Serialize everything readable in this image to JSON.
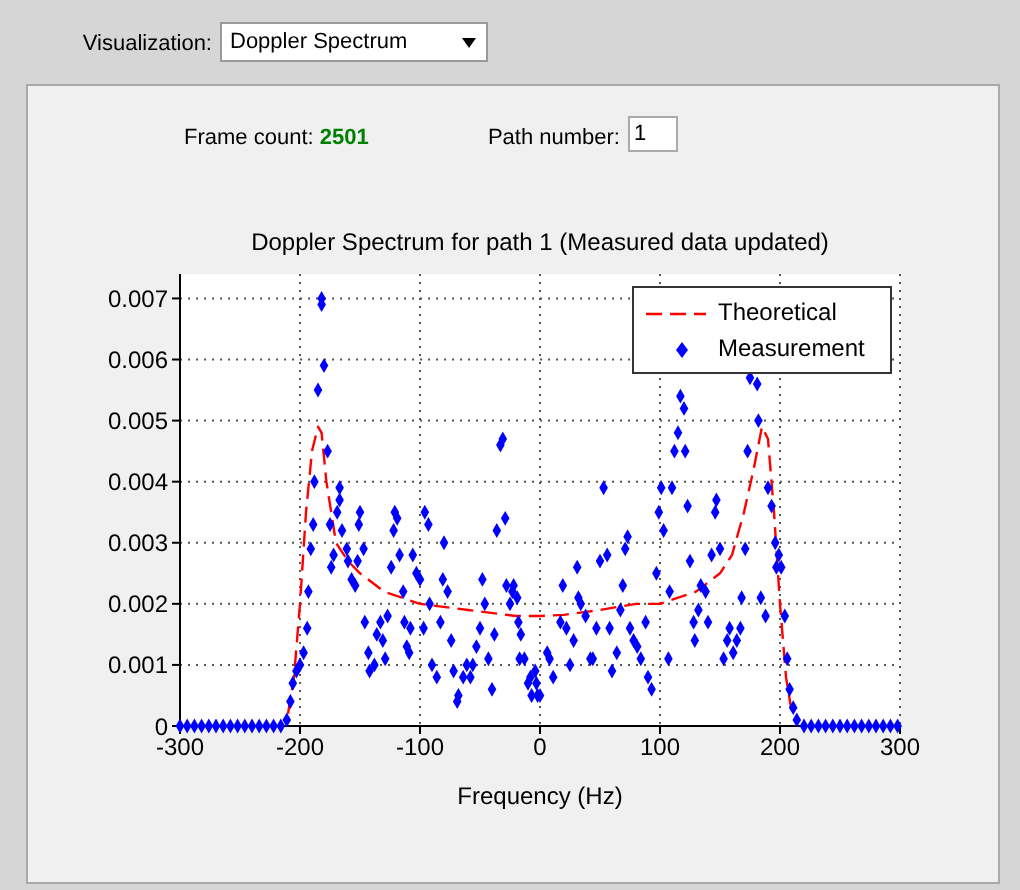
{
  "chart_data": {
    "type": "scatter",
    "title": "Doppler Spectrum for path 1 (Measured data updated)",
    "xlabel": "Frequency (Hz)",
    "annotations": [
      "Visualization:",
      "Doppler Spectrum",
      "Frame count:",
      "2501",
      "Path number:",
      "1"
    ],
    "xlim": [
      -300,
      300
    ],
    "xticks": [
      -300,
      -200,
      -100,
      0,
      100,
      200,
      300
    ],
    "ylim": [
      0,
      0.0074
    ],
    "yticks": [
      0,
      0.001,
      0.002,
      0.003,
      0.004,
      0.005,
      0.006,
      0.007
    ],
    "grid": true,
    "legend": "top right",
    "series": [
      {
        "name": "Theoretical",
        "type": "line",
        "color": "#ff0000",
        "line_style": "dashed",
        "marker": "none",
        "x": [
          -210,
          -205,
          -200,
          -195,
          -190,
          -185,
          -182,
          -178,
          -170,
          -160,
          -150,
          -130,
          -100,
          -60,
          -20,
          0,
          20,
          50,
          80,
          100,
          130,
          150,
          160,
          170,
          178,
          185,
          190,
          195,
          200,
          205,
          210
        ],
        "values": [
          0.0002,
          0.0008,
          0.002,
          0.0035,
          0.0045,
          0.0049,
          0.0048,
          0.004,
          0.003,
          0.0027,
          0.0025,
          0.0022,
          0.002,
          0.0019,
          0.0018,
          0.0018,
          0.00182,
          0.0019,
          0.002,
          0.002,
          0.0022,
          0.0025,
          0.0028,
          0.0035,
          0.0042,
          0.0049,
          0.0047,
          0.0035,
          0.002,
          0.0008,
          0.0002
        ]
      },
      {
        "name": "Measurement",
        "color": "#0000ff",
        "marker": "diamond",
        "x": [
          -300,
          -294,
          -288,
          -282,
          -276,
          -270,
          -264,
          -258,
          -252,
          -246,
          -240,
          -234,
          -228,
          -222,
          -216,
          -211,
          -208,
          -206,
          -203,
          -200,
          -197,
          -194,
          -193,
          -191,
          -189,
          -188,
          -185,
          -182,
          -182,
          -180,
          -177,
          -175,
          -174,
          -172,
          -169,
          -167,
          -167,
          -165,
          -161,
          -160,
          -157,
          -154,
          -152,
          -151,
          -150,
          -147,
          -146,
          -143,
          -142,
          -138,
          -136,
          -133,
          -131,
          -129,
          -127,
          -124,
          -122,
          -121,
          -119,
          -117,
          -114,
          -113,
          -111,
          -109,
          -108,
          -106,
          -103,
          -100,
          -97,
          -96,
          -93,
          -92,
          -90,
          -86,
          -83,
          -81,
          -80,
          -77,
          -74,
          -72,
          -69,
          -68,
          -64,
          -61,
          -58,
          -56,
          -53,
          -50,
          -48,
          -46,
          -43,
          -40,
          -38,
          -36,
          -33,
          -31,
          -29,
          -28,
          -25,
          -23,
          -22,
          -19,
          -18,
          -17,
          -16,
          -13,
          -10,
          -8,
          -7,
          -4,
          -3,
          -2,
          0,
          6,
          8,
          11,
          17,
          19,
          22,
          25,
          28,
          31,
          32,
          34,
          38,
          42,
          44,
          47,
          50,
          53,
          56,
          58,
          60,
          64,
          67,
          69,
          71,
          73,
          75,
          78,
          81,
          84,
          88,
          90,
          93,
          97,
          99,
          101,
          103,
          107,
          108,
          110,
          112,
          115,
          117,
          120,
          121,
          123,
          125,
          128,
          129,
          132,
          134,
          138,
          140,
          143,
          146,
          147,
          150,
          153,
          156,
          158,
          161,
          164,
          167,
          168,
          171,
          173,
          175,
          181,
          182,
          184,
          188,
          190,
          193,
          196,
          197,
          199,
          201,
          204,
          206,
          208,
          211,
          214,
          220,
          226,
          232,
          238,
          244,
          250,
          256,
          262,
          268,
          274,
          280,
          286,
          292,
          298
        ],
        "values": [
          0,
          0,
          0,
          0,
          0,
          0,
          0,
          0,
          0,
          0,
          0,
          0,
          0,
          0,
          0,
          0.0001,
          0.0004,
          0.0007,
          0.0009,
          0.001,
          0.0012,
          0.0016,
          0.0022,
          0.0029,
          0.0033,
          0.004,
          0.0055,
          0.007,
          0.0069,
          0.0059,
          0.0045,
          0.0033,
          0.0026,
          0.0028,
          0.0035,
          0.0039,
          0.0037,
          0.0032,
          0.0029,
          0.0027,
          0.0024,
          0.0023,
          0.0027,
          0.0033,
          0.0035,
          0.0029,
          0.0017,
          0.0012,
          0.0009,
          0.001,
          0.0015,
          0.0017,
          0.0014,
          0.0011,
          0.0018,
          0.0026,
          0.0032,
          0.0035,
          0.0034,
          0.0028,
          0.0022,
          0.0017,
          0.0013,
          0.0012,
          0.0016,
          0.0028,
          0.0025,
          0.0024,
          0.0016,
          0.0035,
          0.0033,
          0.002,
          0.001,
          0.0008,
          0.0017,
          0.0024,
          0.003,
          0.0022,
          0.0014,
          0.0009,
          0.0004,
          0.0005,
          0.0008,
          0.001,
          0.0008,
          0.001,
          0.0013,
          0.0016,
          0.0024,
          0.002,
          0.0011,
          0.0006,
          0.0015,
          0.0032,
          0.0046,
          0.0047,
          0.0034,
          0.0023,
          0.002,
          0.0022,
          0.0023,
          0.0021,
          0.0017,
          0.0011,
          0.0015,
          0.0011,
          0.0007,
          0.0008,
          0.0005,
          0.0009,
          0.0007,
          0.0005,
          0.0005,
          0.0012,
          0.0011,
          0.0008,
          0.0017,
          0.0023,
          0.0016,
          0.001,
          0.0014,
          0.0026,
          0.0021,
          0.002,
          0.0018,
          0.0011,
          0.0011,
          0.0016,
          0.0027,
          0.0039,
          0.0028,
          0.0016,
          0.0009,
          0.0012,
          0.0019,
          0.0023,
          0.0029,
          0.0031,
          0.0016,
          0.0014,
          0.0013,
          0.0011,
          0.0017,
          0.0008,
          0.0006,
          0.0025,
          0.0035,
          0.0039,
          0.0032,
          0.0011,
          0.0022,
          0.0039,
          0.0045,
          0.0048,
          0.0054,
          0.0052,
          0.0045,
          0.0036,
          0.0027,
          0.0017,
          0.0014,
          0.0019,
          0.0023,
          0.0022,
          0.0017,
          0.0028,
          0.0035,
          0.0037,
          0.0029,
          0.0011,
          0.0014,
          0.0016,
          0.0012,
          0.0014,
          0.0016,
          0.0021,
          0.0029,
          0.0045,
          0.0057,
          0.0056,
          0.005,
          0.0021,
          0.0018,
          0.0039,
          0.0036,
          0.003,
          0.0026,
          0.0028,
          0.0026,
          0.0018,
          0.0011,
          0.0006,
          0.0003,
          0.0001,
          0,
          0,
          0,
          0,
          0,
          0,
          0,
          0,
          0,
          0,
          0,
          0,
          0,
          0
        ]
      }
    ]
  }
}
